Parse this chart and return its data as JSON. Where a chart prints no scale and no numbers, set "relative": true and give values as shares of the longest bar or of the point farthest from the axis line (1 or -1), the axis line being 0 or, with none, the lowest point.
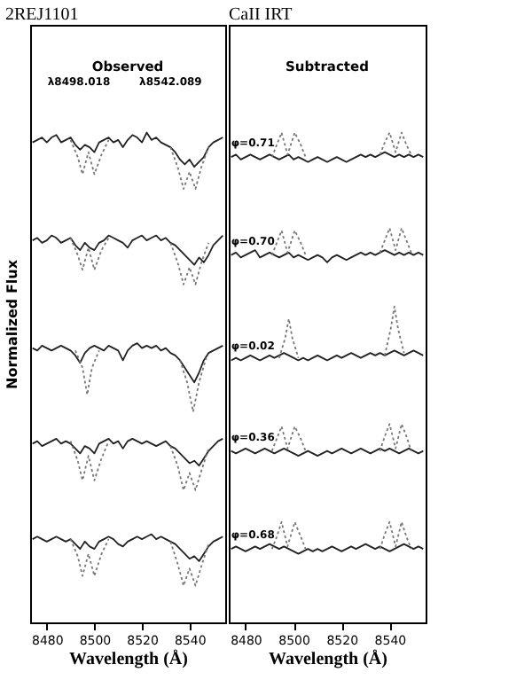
{
  "chart_data": [
    {
      "type": "line",
      "title": "2REJ1101",
      "subtitle": "Observed",
      "xlabel": "Wavelength (Å)",
      "ylabel": "Normalized Flux",
      "relative": true,
      "xlim": [
        8473,
        8555
      ],
      "xticks": [
        8480,
        8500,
        8520,
        8540
      ],
      "tick_labels": "x",
      "grid": false,
      "marker": "none",
      "x": [
        8474,
        8476,
        8478,
        8480,
        8482,
        8484,
        8486,
        8488,
        8490,
        8492,
        8494,
        8496,
        8498,
        8500,
        8502,
        8504,
        8506,
        8508,
        8510,
        8512,
        8514,
        8516,
        8518,
        8520,
        8522,
        8524,
        8526,
        8528,
        8530,
        8532,
        8534,
        8536,
        8538,
        8540,
        8542,
        8544,
        8546,
        8548,
        8550,
        8552,
        8554
      ],
      "annotations": [
        "λ8498.018",
        "λ8542.089"
      ],
      "series": [
        {
          "color": "#222222",
          "line_style": "solid",
          "values": [
            0.98,
            0.985,
            0.99,
            0.98,
            0.99,
            0.995,
            0.98,
            0.985,
            0.99,
            0.975,
            0.965,
            0.975,
            0.97,
            0.96,
            0.98,
            0.985,
            0.99,
            0.98,
            0.985,
            0.97,
            0.985,
            0.995,
            0.99,
            0.98,
            1.0,
            0.985,
            0.99,
            0.98,
            0.975,
            0.97,
            0.96,
            0.945,
            0.935,
            0.945,
            0.93,
            0.94,
            0.95,
            0.97,
            0.98,
            0.985,
            0.99
          ]
        },
        {
          "color": "#777777",
          "line_style": "dotted",
          "x": [
            8490,
            8493,
            8495,
            8497.5,
            8500,
            8503,
            8506,
            8520,
            8532,
            8535,
            8537.5,
            8540,
            8542.5,
            8545,
            8548
          ],
          "values": [
            0.985,
            0.95,
            0.915,
            0.96,
            0.915,
            0.955,
            0.985,
            null,
            0.97,
            0.93,
            0.885,
            0.92,
            0.885,
            0.93,
            0.97
          ]
        },
        {
          "color": "#222222",
          "line_style": "solid",
          "values": [
            0.78,
            0.785,
            0.775,
            0.78,
            0.79,
            0.785,
            0.775,
            0.78,
            0.785,
            0.77,
            0.76,
            0.775,
            0.765,
            0.76,
            0.775,
            0.78,
            0.79,
            0.785,
            0.78,
            0.775,
            0.765,
            0.78,
            0.785,
            0.79,
            0.78,
            0.785,
            0.79,
            0.78,
            0.785,
            0.775,
            0.77,
            0.76,
            0.75,
            0.74,
            0.73,
            0.745,
            0.735,
            0.75,
            0.77,
            0.78,
            0.79
          ]
        },
        {
          "color": "#777777",
          "line_style": "dotted",
          "x": [
            8490,
            8493,
            8495,
            8497.5,
            8500,
            8503,
            8506,
            8520,
            8532,
            8535,
            8537.5,
            8540,
            8542.5,
            8545,
            8548
          ],
          "values": [
            0.785,
            0.75,
            0.72,
            0.765,
            0.72,
            0.76,
            0.785,
            null,
            0.775,
            0.735,
            0.69,
            0.725,
            0.69,
            0.735,
            0.775
          ]
        },
        {
          "color": "#222222",
          "line_style": "solid",
          "values": [
            0.56,
            0.555,
            0.565,
            0.56,
            0.555,
            0.56,
            0.565,
            0.56,
            0.555,
            0.545,
            0.53,
            0.55,
            0.56,
            0.565,
            0.56,
            0.555,
            0.565,
            0.56,
            0.555,
            0.535,
            0.555,
            0.565,
            0.57,
            0.56,
            0.565,
            0.56,
            0.565,
            0.555,
            0.56,
            0.55,
            0.545,
            0.535,
            0.52,
            0.505,
            0.49,
            0.51,
            0.535,
            0.55,
            0.555,
            0.56,
            0.565
          ]
        },
        {
          "color": "#777777",
          "line_style": "dotted",
          "x": [
            8492,
            8495,
            8497,
            8499,
            8502,
            8520,
            8536,
            8539,
            8541.5,
            8544,
            8547
          ],
          "values": [
            0.555,
            0.52,
            0.465,
            0.52,
            0.555,
            null,
            0.535,
            0.49,
            0.43,
            0.49,
            0.54
          ]
        },
        {
          "color": "#222222",
          "line_style": "solid",
          "values": [
            0.365,
            0.37,
            0.36,
            0.365,
            0.37,
            0.375,
            0.365,
            0.37,
            0.365,
            0.355,
            0.345,
            0.36,
            0.355,
            0.345,
            0.365,
            0.37,
            0.375,
            0.365,
            0.37,
            0.355,
            0.37,
            0.375,
            0.37,
            0.365,
            0.37,
            0.365,
            0.36,
            0.365,
            0.37,
            0.36,
            0.355,
            0.345,
            0.335,
            0.325,
            0.33,
            0.32,
            0.335,
            0.35,
            0.36,
            0.37,
            0.375
          ]
        },
        {
          "color": "#777777",
          "line_style": "dotted",
          "x": [
            8490,
            8493,
            8495,
            8497.5,
            8500,
            8503,
            8506,
            8520,
            8532,
            8535,
            8537.5,
            8540,
            8542.5,
            8545,
            8548
          ],
          "values": [
            0.37,
            0.33,
            0.29,
            0.34,
            0.29,
            0.335,
            0.37,
            null,
            0.36,
            0.32,
            0.27,
            0.305,
            0.27,
            0.31,
            0.355
          ]
        },
        {
          "color": "#222222",
          "line_style": "solid",
          "values": [
            0.17,
            0.175,
            0.17,
            0.165,
            0.17,
            0.175,
            0.17,
            0.165,
            0.17,
            0.16,
            0.15,
            0.165,
            0.155,
            0.15,
            0.165,
            0.17,
            0.175,
            0.17,
            0.16,
            0.155,
            0.165,
            0.17,
            0.175,
            0.17,
            0.175,
            0.18,
            0.17,
            0.175,
            0.17,
            0.165,
            0.16,
            0.15,
            0.14,
            0.13,
            0.135,
            0.125,
            0.14,
            0.155,
            0.165,
            0.17,
            0.175
          ]
        },
        {
          "color": "#777777",
          "line_style": "dotted",
          "x": [
            8490,
            8493,
            8495,
            8497.5,
            8500,
            8503,
            8506,
            8520,
            8532,
            8535,
            8537.5,
            8540,
            8542.5,
            8545,
            8548
          ],
          "values": [
            0.17,
            0.135,
            0.095,
            0.14,
            0.095,
            0.14,
            0.17,
            null,
            0.165,
            0.12,
            0.075,
            0.11,
            0.075,
            0.115,
            0.16
          ]
        }
      ]
    },
    {
      "type": "line",
      "title": "CaII IRT",
      "subtitle": "Subtracted",
      "xlabel": "Wavelength (Å)",
      "relative": true,
      "xlim": [
        8473,
        8555
      ],
      "xticks": [
        8480,
        8500,
        8520,
        8540
      ],
      "tick_labels": "x",
      "grid": false,
      "marker": "none",
      "x": [
        8474,
        8476,
        8478,
        8480,
        8482,
        8484,
        8486,
        8488,
        8490,
        8492,
        8494,
        8496,
        8498,
        8500,
        8502,
        8504,
        8506,
        8508,
        8510,
        8512,
        8514,
        8516,
        8518,
        8520,
        8522,
        8524,
        8526,
        8528,
        8530,
        8532,
        8534,
        8536,
        8538,
        8540,
        8542,
        8544,
        8546,
        8548,
        8550,
        8552,
        8554
      ],
      "annotations": [
        "φ=0.71",
        "φ=0.70",
        "φ=0.02",
        "φ=0.36",
        "φ=0.68"
      ],
      "series": [
        {
          "color": "#222222",
          "line_style": "solid",
          "values": [
            0.95,
            0.955,
            0.945,
            0.95,
            0.955,
            0.95,
            0.945,
            0.95,
            0.955,
            0.95,
            0.945,
            0.95,
            0.955,
            0.945,
            0.95,
            0.945,
            0.94,
            0.945,
            0.95,
            0.945,
            0.94,
            0.945,
            0.95,
            0.945,
            0.94,
            0.945,
            0.95,
            0.955,
            0.95,
            0.955,
            0.95,
            0.955,
            0.96,
            0.955,
            0.95,
            0.955,
            0.95,
            0.955,
            0.95,
            0.955,
            0.95
          ]
        },
        {
          "color": "#777777",
          "line_style": "dotted",
          "x": [
            8491,
            8493,
            8495,
            8497.5,
            8500.5,
            8503,
            8505,
            8520,
            8536,
            8538,
            8540,
            8542.5,
            8545,
            8547,
            8549
          ],
          "values": [
            0.95,
            0.975,
            1.0,
            0.955,
            1.0,
            0.975,
            0.95,
            null,
            0.955,
            0.98,
            1.0,
            0.96,
            1.0,
            0.975,
            0.955
          ]
        },
        {
          "color": "#222222",
          "line_style": "solid",
          "values": [
            0.75,
            0.755,
            0.745,
            0.75,
            0.755,
            0.76,
            0.745,
            0.75,
            0.755,
            0.75,
            0.745,
            0.75,
            0.755,
            0.745,
            0.75,
            0.745,
            0.74,
            0.745,
            0.75,
            0.745,
            0.735,
            0.745,
            0.75,
            0.745,
            0.74,
            0.745,
            0.75,
            0.755,
            0.75,
            0.755,
            0.75,
            0.755,
            0.76,
            0.755,
            0.75,
            0.755,
            0.75,
            0.755,
            0.75,
            0.755,
            0.75
          ]
        },
        {
          "color": "#777777",
          "line_style": "dotted",
          "x": [
            8491,
            8493,
            8495,
            8497.5,
            8500.5,
            8503,
            8505,
            8520,
            8536,
            8538,
            8540,
            8542.5,
            8545,
            8547,
            8549
          ],
          "values": [
            0.75,
            0.775,
            0.8,
            0.755,
            0.8,
            0.775,
            0.75,
            null,
            0.755,
            0.78,
            0.805,
            0.76,
            0.805,
            0.78,
            0.755
          ]
        },
        {
          "color": "#222222",
          "line_style": "solid",
          "values": [
            0.535,
            0.54,
            0.535,
            0.54,
            0.545,
            0.54,
            0.535,
            0.54,
            0.545,
            0.54,
            0.545,
            0.55,
            0.545,
            0.54,
            0.535,
            0.54,
            0.535,
            0.54,
            0.545,
            0.54,
            0.535,
            0.54,
            0.545,
            0.54,
            0.545,
            0.55,
            0.545,
            0.54,
            0.545,
            0.55,
            0.545,
            0.55,
            0.545,
            0.55,
            0.555,
            0.55,
            0.545,
            0.55,
            0.555,
            0.55,
            0.545
          ]
        },
        {
          "color": "#777777",
          "line_style": "dotted",
          "x": [
            8494,
            8496.5,
            8498,
            8499.5,
            8502,
            8520,
            8538,
            8540.5,
            8542,
            8543.5,
            8546
          ],
          "values": [
            0.54,
            0.58,
            0.62,
            0.58,
            0.54,
            null,
            0.545,
            0.6,
            0.645,
            0.6,
            0.55
          ]
        },
        {
          "color": "#222222",
          "line_style": "solid",
          "values": [
            0.35,
            0.345,
            0.35,
            0.355,
            0.35,
            0.345,
            0.35,
            0.355,
            0.35,
            0.345,
            0.35,
            0.355,
            0.35,
            0.345,
            0.34,
            0.345,
            0.35,
            0.345,
            0.34,
            0.345,
            0.35,
            0.345,
            0.35,
            0.355,
            0.35,
            0.345,
            0.35,
            0.355,
            0.35,
            0.345,
            0.35,
            0.355,
            0.35,
            0.355,
            0.35,
            0.345,
            0.35,
            0.355,
            0.35,
            0.345,
            0.35
          ]
        },
        {
          "color": "#777777",
          "line_style": "dotted",
          "x": [
            8491,
            8493,
            8495,
            8497.5,
            8500.5,
            8503,
            8505,
            8520,
            8536,
            8538,
            8540,
            8542.5,
            8545,
            8547,
            8549
          ],
          "values": [
            0.35,
            0.375,
            0.4,
            0.355,
            0.4,
            0.375,
            0.35,
            null,
            0.35,
            0.38,
            0.405,
            0.355,
            0.405,
            0.38,
            0.35
          ]
        },
        {
          "color": "#222222",
          "line_style": "solid",
          "values": [
            0.15,
            0.155,
            0.15,
            0.145,
            0.15,
            0.155,
            0.15,
            0.155,
            0.16,
            0.155,
            0.15,
            0.155,
            0.15,
            0.145,
            0.14,
            0.145,
            0.15,
            0.145,
            0.15,
            0.145,
            0.15,
            0.155,
            0.15,
            0.145,
            0.15,
            0.155,
            0.15,
            0.155,
            0.16,
            0.155,
            0.15,
            0.155,
            0.15,
            0.145,
            0.15,
            0.155,
            0.16,
            0.155,
            0.15,
            0.155,
            0.15
          ]
        },
        {
          "color": "#777777",
          "line_style": "dotted",
          "x": [
            8491,
            8493,
            8495,
            8497.5,
            8500.5,
            8503,
            8505,
            8520,
            8536,
            8538,
            8540,
            8542.5,
            8545,
            8547,
            8549
          ],
          "values": [
            0.15,
            0.175,
            0.205,
            0.155,
            0.205,
            0.175,
            0.15,
            null,
            0.15,
            0.18,
            0.205,
            0.155,
            0.205,
            0.175,
            0.15
          ]
        }
      ]
    }
  ]
}
